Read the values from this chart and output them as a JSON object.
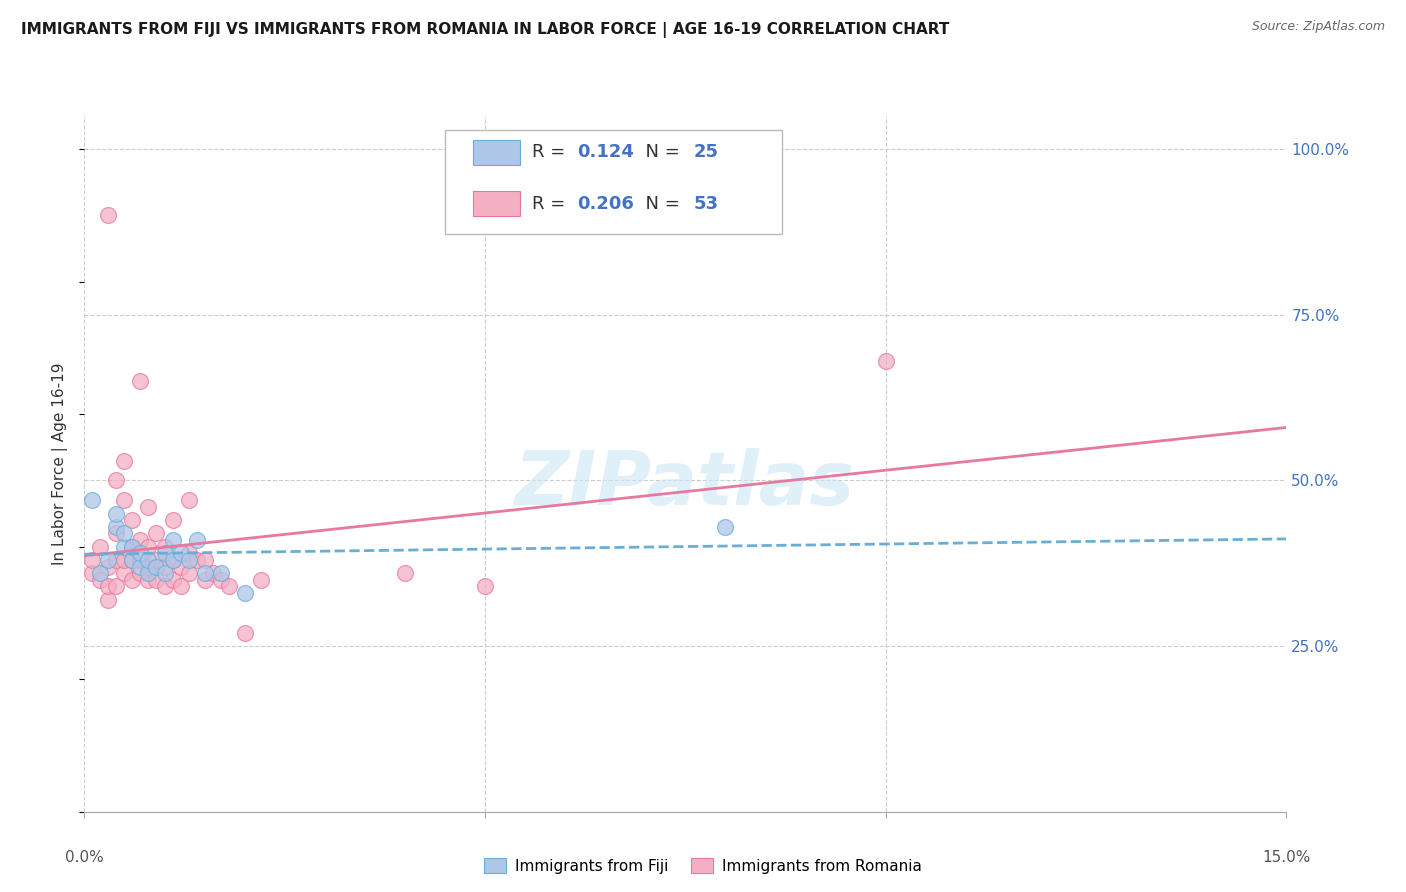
{
  "title": "IMMIGRANTS FROM FIJI VS IMMIGRANTS FROM ROMANIA IN LABOR FORCE | AGE 16-19 CORRELATION CHART",
  "source": "Source: ZipAtlas.com",
  "ylabel": "In Labor Force | Age 16-19",
  "xlim": [
    0.0,
    0.15
  ],
  "ylim": [
    0.0,
    1.05
  ],
  "xticks": [
    0.0,
    0.05,
    0.1,
    0.15
  ],
  "ytick_positions": [
    0.0,
    0.25,
    0.5,
    0.75,
    1.0
  ],
  "yticklabels_right": [
    "",
    "25.0%",
    "50.0%",
    "75.0%",
    "100.0%"
  ],
  "fiji_R": "0.124",
  "fiji_N": "25",
  "romania_R": "0.206",
  "romania_N": "53",
  "fiji_color": "#aec6e8",
  "romania_color": "#f4afc3",
  "fiji_edge_color": "#6aaed6",
  "romania_edge_color": "#e8799e",
  "fiji_line_color": "#6aaed6",
  "romania_line_color": "#e8799e",
  "watermark": "ZIPatlas",
  "fiji_points": [
    [
      0.001,
      0.47
    ],
    [
      0.002,
      0.36
    ],
    [
      0.003,
      0.38
    ],
    [
      0.004,
      0.43
    ],
    [
      0.004,
      0.45
    ],
    [
      0.005,
      0.4
    ],
    [
      0.005,
      0.42
    ],
    [
      0.006,
      0.38
    ],
    [
      0.006,
      0.4
    ],
    [
      0.007,
      0.37
    ],
    [
      0.007,
      0.39
    ],
    [
      0.008,
      0.36
    ],
    [
      0.008,
      0.38
    ],
    [
      0.009,
      0.37
    ],
    [
      0.01,
      0.36
    ],
    [
      0.01,
      0.39
    ],
    [
      0.011,
      0.38
    ],
    [
      0.011,
      0.41
    ],
    [
      0.012,
      0.39
    ],
    [
      0.013,
      0.38
    ],
    [
      0.014,
      0.41
    ],
    [
      0.015,
      0.36
    ],
    [
      0.017,
      0.36
    ],
    [
      0.02,
      0.33
    ],
    [
      0.08,
      0.43
    ]
  ],
  "romania_points": [
    [
      0.001,
      0.36
    ],
    [
      0.001,
      0.38
    ],
    [
      0.002,
      0.35
    ],
    [
      0.002,
      0.4
    ],
    [
      0.003,
      0.32
    ],
    [
      0.003,
      0.34
    ],
    [
      0.003,
      0.37
    ],
    [
      0.003,
      0.9
    ],
    [
      0.004,
      0.34
    ],
    [
      0.004,
      0.38
    ],
    [
      0.004,
      0.42
    ],
    [
      0.004,
      0.5
    ],
    [
      0.005,
      0.36
    ],
    [
      0.005,
      0.38
    ],
    [
      0.005,
      0.47
    ],
    [
      0.005,
      0.53
    ],
    [
      0.006,
      0.35
    ],
    [
      0.006,
      0.38
    ],
    [
      0.006,
      0.4
    ],
    [
      0.006,
      0.44
    ],
    [
      0.007,
      0.36
    ],
    [
      0.007,
      0.38
    ],
    [
      0.007,
      0.41
    ],
    [
      0.008,
      0.35
    ],
    [
      0.008,
      0.37
    ],
    [
      0.008,
      0.4
    ],
    [
      0.008,
      0.46
    ],
    [
      0.009,
      0.35
    ],
    [
      0.009,
      0.38
    ],
    [
      0.009,
      0.42
    ],
    [
      0.01,
      0.34
    ],
    [
      0.01,
      0.37
    ],
    [
      0.01,
      0.4
    ],
    [
      0.011,
      0.35
    ],
    [
      0.011,
      0.38
    ],
    [
      0.011,
      0.44
    ],
    [
      0.012,
      0.34
    ],
    [
      0.012,
      0.37
    ],
    [
      0.013,
      0.36
    ],
    [
      0.013,
      0.39
    ],
    [
      0.013,
      0.47
    ],
    [
      0.014,
      0.38
    ],
    [
      0.015,
      0.35
    ],
    [
      0.015,
      0.38
    ],
    [
      0.016,
      0.36
    ],
    [
      0.017,
      0.35
    ],
    [
      0.018,
      0.34
    ],
    [
      0.02,
      0.27
    ],
    [
      0.022,
      0.35
    ],
    [
      0.04,
      0.36
    ],
    [
      0.05,
      0.34
    ],
    [
      0.1,
      0.68
    ],
    [
      0.007,
      0.65
    ]
  ],
  "background_color": "#ffffff",
  "grid_color": "#cccccc"
}
